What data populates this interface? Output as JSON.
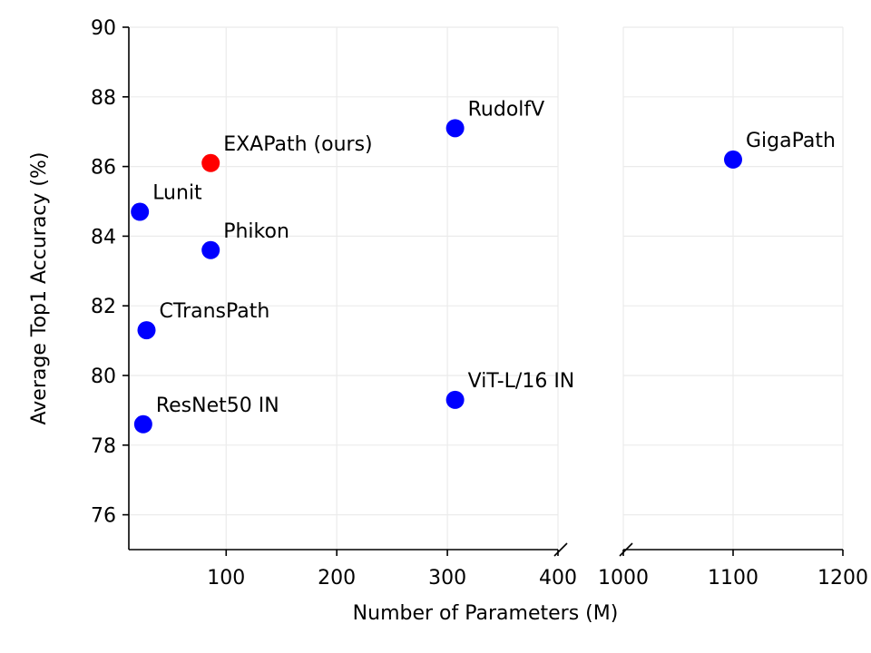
{
  "chart_data": {
    "type": "scatter",
    "xlabel": "Number of Parameters (M)",
    "ylabel": "Average Top1 Accuracy (%)",
    "ylim": [
      75,
      90
    ],
    "y_ticks": [
      76,
      78,
      80,
      82,
      84,
      86,
      88,
      90
    ],
    "broken_x_axis": true,
    "x_segments": [
      {
        "xlim": [
          12,
          400
        ],
        "ticks": [
          100,
          200,
          300,
          400
        ]
      },
      {
        "xlim": [
          1000,
          1200
        ],
        "ticks": [
          1000,
          1100,
          1200
        ]
      }
    ],
    "grid": true,
    "points": [
      {
        "label": "EXAPath (ours)",
        "x": 86,
        "y": 86.1,
        "color": "#ff0000"
      },
      {
        "label": "RudolfV",
        "x": 307,
        "y": 87.1,
        "color": "#0000ff"
      },
      {
        "label": "Lunit",
        "x": 22,
        "y": 84.7,
        "color": "#0000ff"
      },
      {
        "label": "Phikon",
        "x": 86,
        "y": 83.6,
        "color": "#0000ff"
      },
      {
        "label": "CTransPath",
        "x": 28,
        "y": 81.3,
        "color": "#0000ff"
      },
      {
        "label": "ResNet50 IN",
        "x": 25,
        "y": 78.6,
        "color": "#0000ff"
      },
      {
        "label": "ViT-L/16 IN",
        "x": 307,
        "y": 79.3,
        "color": "#0000ff"
      },
      {
        "label": "GigaPath",
        "x": 1100,
        "y": 86.2,
        "color": "#0000ff"
      }
    ]
  }
}
